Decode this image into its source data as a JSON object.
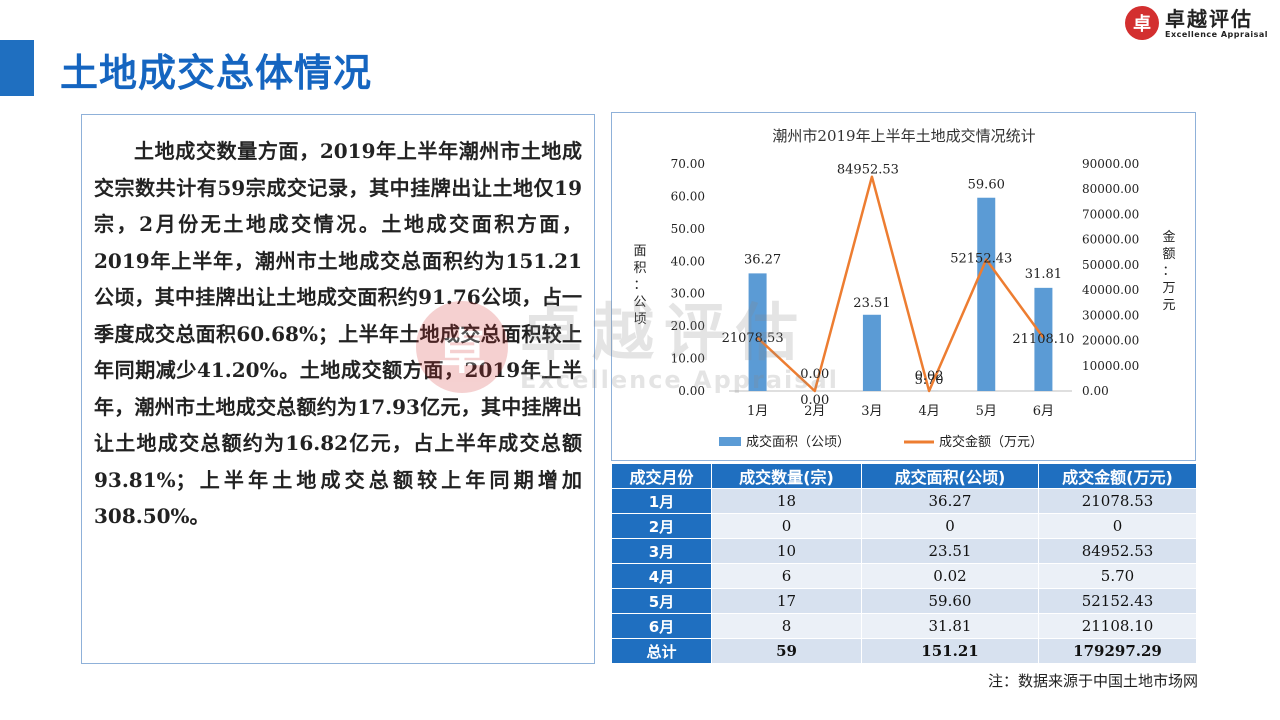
{
  "page": {
    "title": "土地成交总体情况",
    "accent_color": "#1f6fc0",
    "title_color": "#1565c0"
  },
  "logo": {
    "mark": "卓",
    "name_cn": "卓越评估",
    "name_en": "Excellence Appraisal",
    "color": "#d32f2f"
  },
  "watermark": {
    "mark": "卓",
    "cn": "卓越评估",
    "en": "Excellence Appraisal"
  },
  "body_text": "土地成交数量方面，2019年上半年潮州市土地成交宗数共计有59宗成交记录，其中挂牌出让土地仅19宗，2月份无土地成交情况。土地成交面积方面，2019年上半年，潮州市土地成交总面积约为151.21公顷，其中挂牌出让土地成交面积约91.76公顷，占一季度成交总面积60.68%；上半年土地成交总面积较上年同期减少41.20%。土地成交额方面，2019年上半年，潮州市土地成交总额约为17.93亿元，其中挂牌出让土地成交总额约为16.82亿元，占上半年成交总额93.81%；上半年土地成交总额较上年同期增加308.50%。",
  "chart_data": {
    "type": "bar",
    "title": "潮州市2019年上半年土地成交情况统计",
    "categories": [
      "1月",
      "2月",
      "3月",
      "4月",
      "5月",
      "6月"
    ],
    "series": [
      {
        "name": "成交面积（公顷）",
        "type": "bar",
        "axis": "left",
        "color": "#5b9bd5",
        "values": [
          36.27,
          0.0,
          23.51,
          0.02,
          59.6,
          31.81
        ],
        "labels": [
          "36.27",
          "0.00",
          "23.51",
          "0.02",
          "59.60",
          "31.81"
        ]
      },
      {
        "name": "成交金额（万元）",
        "type": "line",
        "axis": "right",
        "color": "#ed7d31",
        "values": [
          21078.53,
          0.0,
          84952.53,
          5.7,
          52152.43,
          21108.1
        ],
        "labels": [
          "21078.53",
          "0.00",
          "84952.53",
          "5.70",
          "52152.43",
          "21108.10"
        ]
      }
    ],
    "ylabel": "面积：公顷",
    "y2label": "金额：万元",
    "ylim": [
      0,
      70
    ],
    "y2lim": [
      0,
      90000
    ],
    "yticks": [
      "0.00",
      "10.00",
      "20.00",
      "30.00",
      "40.00",
      "50.00",
      "60.00",
      "70.00"
    ],
    "y2ticks": [
      "0.00",
      "10000.00",
      "20000.00",
      "30000.00",
      "40000.00",
      "50000.00",
      "60000.00",
      "70000.00",
      "80000.00",
      "90000.00"
    ],
    "grid": false,
    "legend": "bottom"
  },
  "table": {
    "headers": [
      "成交月份",
      "成交数量(宗)",
      "成交面积(公顷)",
      "成交金额(万元)"
    ],
    "rows": [
      {
        "month": "1月",
        "count": "18",
        "area": "36.27",
        "amount": "21078.53"
      },
      {
        "month": "2月",
        "count": "0",
        "area": "0",
        "amount": "0"
      },
      {
        "month": "3月",
        "count": "10",
        "area": "23.51",
        "amount": "84952.53"
      },
      {
        "month": "4月",
        "count": "6",
        "area": "0.02",
        "amount": "5.70"
      },
      {
        "month": "5月",
        "count": "17",
        "area": "59.60",
        "amount": "52152.43"
      },
      {
        "month": "6月",
        "count": "8",
        "area": "31.81",
        "amount": "21108.10"
      }
    ],
    "total": {
      "label": "总计",
      "count": "59",
      "area": "151.21",
      "amount": "179297.29"
    }
  },
  "footnote": "注：数据来源于中国土地市场网"
}
